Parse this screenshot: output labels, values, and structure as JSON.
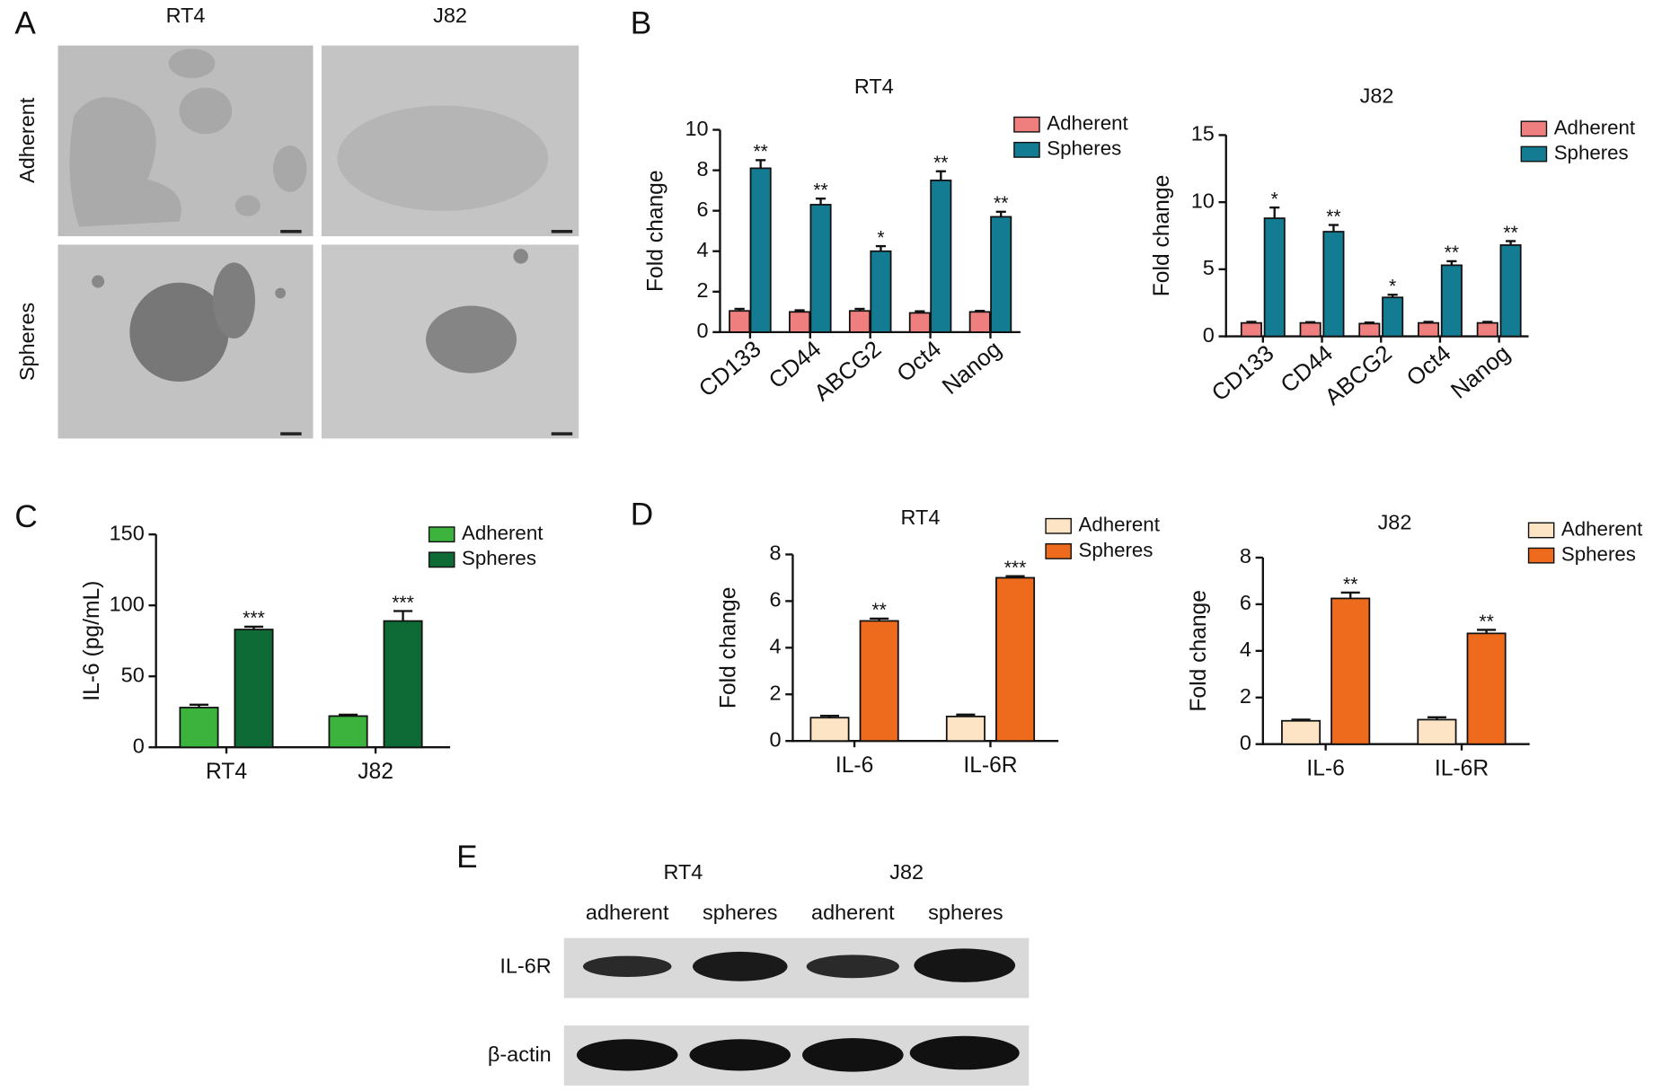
{
  "panel_labels": [
    "A",
    "B",
    "C",
    "D",
    "E"
  ],
  "micrographs": {
    "columns": [
      "RT4",
      "J82"
    ],
    "rows": [
      "Adherent",
      "Spheres"
    ]
  },
  "western_blot": {
    "groups": [
      "RT4",
      "J82"
    ],
    "lanes": [
      "adherent",
      "spheres",
      "adherent",
      "spheres"
    ],
    "rows": [
      "IL-6R",
      "β-actin"
    ]
  },
  "chart_data": [
    {
      "type": "bar",
      "title": "RT4",
      "y_label": "Fold change",
      "categories": [
        "CD133",
        "CD44",
        "ABCG2",
        "Oct4",
        "Nanog"
      ],
      "series": [
        {
          "name": "Adherent",
          "color": "#ef7f7f",
          "values": [
            1.05,
            1.0,
            1.05,
            0.95,
            1.0
          ],
          "errors": [
            0.1,
            0.08,
            0.1,
            0.08,
            0.05
          ]
        },
        {
          "name": "Spheres",
          "color": "#137c93",
          "values": [
            8.1,
            6.3,
            4.0,
            7.5,
            5.7
          ],
          "errors": [
            0.4,
            0.3,
            0.25,
            0.45,
            0.25
          ],
          "significance": [
            "**",
            "**",
            "*",
            "**",
            "**"
          ]
        }
      ],
      "ylim": [
        0,
        10
      ],
      "yticks": [
        0,
        2,
        4,
        6,
        8,
        10
      ],
      "legend": "upper right",
      "rotated_labels": true
    },
    {
      "type": "bar",
      "title": "J82",
      "y_label": "Fold change",
      "categories": [
        "CD133",
        "CD44",
        "ABCG2",
        "Oct4",
        "Nanog"
      ],
      "series": [
        {
          "name": "Adherent",
          "color": "#ef7f7f",
          "values": [
            1.0,
            1.0,
            0.95,
            1.0,
            1.0
          ],
          "errors": [
            0.08,
            0.06,
            0.08,
            0.08,
            0.08
          ]
        },
        {
          "name": "Spheres",
          "color": "#137c93",
          "values": [
            8.8,
            7.8,
            2.9,
            5.3,
            6.8
          ],
          "errors": [
            0.8,
            0.5,
            0.2,
            0.3,
            0.3
          ],
          "significance": [
            "*",
            "**",
            "*",
            "**",
            "**"
          ]
        }
      ],
      "ylim": [
        0,
        15
      ],
      "yticks": [
        0,
        5,
        10,
        15
      ],
      "legend": "upper right",
      "rotated_labels": true
    },
    {
      "type": "bar",
      "y_label": "IL-6 (pg/mL)",
      "categories": [
        "RT4",
        "J82"
      ],
      "series": [
        {
          "name": "Adherent",
          "color": "#3cb33c",
          "values": [
            28,
            22
          ],
          "errors": [
            2,
            1
          ]
        },
        {
          "name": "Spheres",
          "color": "#0e6b35",
          "values": [
            83,
            89
          ],
          "errors": [
            2,
            7
          ],
          "significance": [
            "***",
            "***"
          ]
        }
      ],
      "ylim": [
        0,
        150
      ],
      "yticks": [
        0,
        50,
        100,
        150
      ],
      "legend": "upper right",
      "rotated_labels": false
    },
    {
      "type": "bar",
      "title": "RT4",
      "y_label": "Fold change",
      "categories": [
        "IL-6",
        "IL-6R"
      ],
      "series": [
        {
          "name": "Adherent",
          "color": "#fde4c5",
          "values": [
            1.0,
            1.05
          ],
          "errors": [
            0.08,
            0.08
          ]
        },
        {
          "name": "Spheres",
          "color": "#ee6a1c",
          "values": [
            5.15,
            7.0
          ],
          "errors": [
            0.1,
            0.07
          ],
          "significance": [
            "**",
            "***"
          ]
        }
      ],
      "ylim": [
        0,
        8
      ],
      "yticks": [
        0,
        2,
        4,
        6,
        8
      ],
      "legend": "upper right",
      "rotated_labels": false
    },
    {
      "type": "bar",
      "title": "J82",
      "y_label": "Fold change",
      "categories": [
        "IL-6",
        "IL-6R"
      ],
      "series": [
        {
          "name": "Adherent",
          "color": "#fde4c5",
          "values": [
            1.0,
            1.05
          ],
          "errors": [
            0.05,
            0.1
          ]
        },
        {
          "name": "Spheres",
          "color": "#ee6a1c",
          "values": [
            6.25,
            4.75
          ],
          "errors": [
            0.25,
            0.15
          ],
          "significance": [
            "**",
            "**"
          ]
        }
      ],
      "ylim": [
        0,
        8
      ],
      "yticks": [
        0,
        2,
        4,
        6,
        8
      ],
      "legend": "upper right",
      "rotated_labels": false
    }
  ]
}
